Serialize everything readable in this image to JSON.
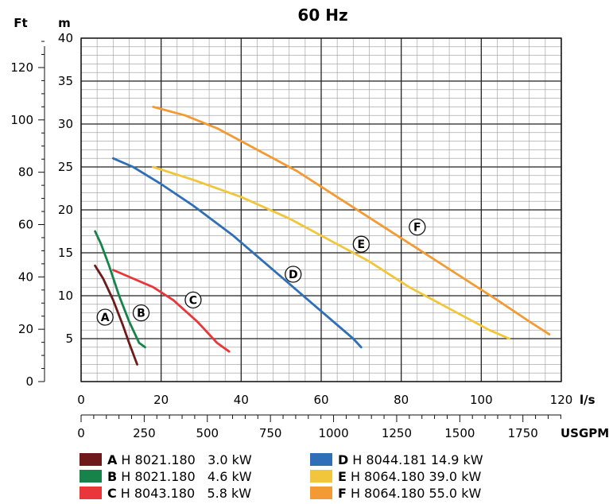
{
  "chart_data": {
    "type": "line",
    "title": "60 Hz",
    "left_axis_label": "Ft",
    "y_axis_label": "m",
    "x_axis_label": "l/s",
    "x2_axis_label": "USGPM",
    "x_ticks": [
      "0",
      "20",
      "40",
      "60",
      "80",
      "100",
      "120"
    ],
    "x2_ticks": [
      "0",
      "250",
      "500",
      "750",
      "1000",
      "1250",
      "1500",
      "1750"
    ],
    "y_ticks": [
      "5",
      "10",
      "15",
      "20",
      "25",
      "30",
      "35",
      "40"
    ],
    "ft_ticks": [
      "0",
      "20",
      "40",
      "60",
      "80",
      "100",
      "120"
    ],
    "xlim": [
      0,
      120
    ],
    "ylim": [
      0,
      40
    ],
    "grid": true,
    "series": [
      {
        "key": "A",
        "name": "H 8021.180",
        "power": "3.0 kW",
        "color": "#6e1a1a",
        "x": [
          3.5,
          5.5,
          8,
          10.5,
          12,
          14
        ],
        "y": [
          13.5,
          12,
          9.5,
          6.5,
          4.5,
          2
        ]
      },
      {
        "key": "B",
        "name": "H 8021.180",
        "power": "4.6 kW",
        "color": "#16834a",
        "x": [
          3.5,
          5,
          7,
          9.5,
          12,
          14.5,
          16
        ],
        "y": [
          17.5,
          16,
          13.5,
          10,
          7,
          4.5,
          4
        ]
      },
      {
        "key": "C",
        "name": "H 8043.180",
        "power": "5.8 kW",
        "color": "#e8363a",
        "x": [
          8,
          13,
          18,
          23,
          29,
          34,
          37
        ],
        "y": [
          13,
          12,
          11,
          9.5,
          7,
          4.5,
          3.5
        ]
      },
      {
        "key": "D",
        "name": "H 8044.181 14.9 kW",
        "power": "",
        "color": "#2e6fb7",
        "x": [
          8,
          13,
          20,
          28,
          38,
          48,
          58,
          68,
          70
        ],
        "y": [
          26,
          25,
          23,
          20.5,
          17,
          13,
          9,
          5,
          4
        ]
      },
      {
        "key": "E",
        "name": "H 8064.180 39.0 kW",
        "power": "",
        "color": "#f2c63a",
        "x": [
          18,
          28,
          40,
          52,
          62,
          72,
          82,
          92,
          102,
          107
        ],
        "y": [
          25,
          23.5,
          21.5,
          19,
          16.5,
          14,
          11,
          8.5,
          6,
          5
        ]
      },
      {
        "key": "F",
        "name": "H 8064.180 55.0 kW",
        "power": "",
        "color": "#f39a34",
        "x": [
          18,
          26,
          34,
          44,
          54,
          64,
          74,
          84,
          94,
          104,
          112,
          117
        ],
        "y": [
          32,
          31,
          29.5,
          27,
          24.5,
          21.5,
          18.5,
          15.5,
          12.5,
          9.5,
          7,
          5.5
        ]
      }
    ],
    "curve_labels": [
      {
        "text": "A",
        "x": 6,
        "y": 7.5
      },
      {
        "text": "B",
        "x": 15,
        "y": 8
      },
      {
        "text": "C",
        "x": 28,
        "y": 9.5
      },
      {
        "text": "D",
        "x": 53,
        "y": 12.5
      },
      {
        "text": "E",
        "x": 70,
        "y": 16
      },
      {
        "text": "F",
        "x": 84,
        "y": 18
      }
    ]
  }
}
